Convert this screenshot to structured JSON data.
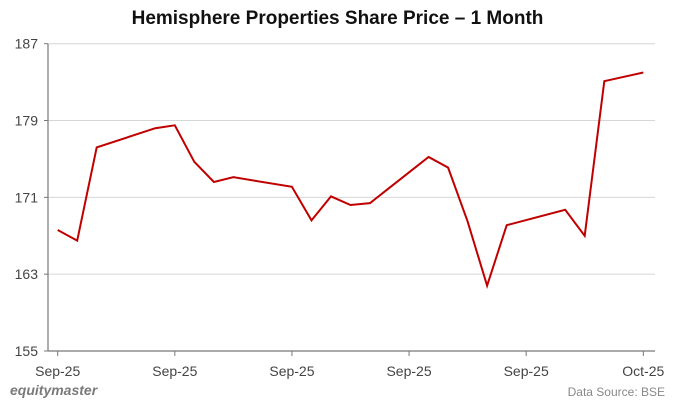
{
  "chart_data": {
    "type": "line",
    "title": "Hemisphere Properties Share Price – 1 Month",
    "xlabel": "",
    "ylabel": "",
    "ylim": [
      155,
      187
    ],
    "yticks": [
      155,
      163,
      171,
      179,
      187
    ],
    "xticks": [
      {
        "day": 0,
        "label": "Sep-25"
      },
      {
        "day": 6,
        "label": "Sep-25"
      },
      {
        "day": 12,
        "label": "Sep-25"
      },
      {
        "day": 18,
        "label": "Sep-25"
      },
      {
        "day": 24,
        "label": "Sep-25"
      },
      {
        "day": 30,
        "label": "Oct-25"
      }
    ],
    "grid": true,
    "line_color": "#c00000",
    "series": [
      {
        "points": [
          [
            0,
            167.6
          ],
          [
            1,
            166.5
          ],
          [
            2,
            176.2
          ],
          [
            5,
            178.2
          ],
          [
            6,
            178.5
          ],
          [
            7,
            174.7
          ],
          [
            8,
            172.6
          ],
          [
            9,
            173.1
          ],
          [
            12,
            172.1
          ],
          [
            13,
            168.6
          ],
          [
            14,
            171.1
          ],
          [
            15,
            170.2
          ],
          [
            16,
            170.4
          ],
          [
            19,
            175.2
          ],
          [
            20,
            174.1
          ],
          [
            21,
            168.5
          ],
          [
            22,
            161.8
          ],
          [
            23,
            168.1
          ],
          [
            26,
            169.7
          ],
          [
            27,
            167.0
          ],
          [
            28,
            183.1
          ],
          [
            30,
            184.0
          ]
        ]
      }
    ]
  },
  "footer": {
    "logo": "equitymaster",
    "source": "Data Source: BSE"
  }
}
